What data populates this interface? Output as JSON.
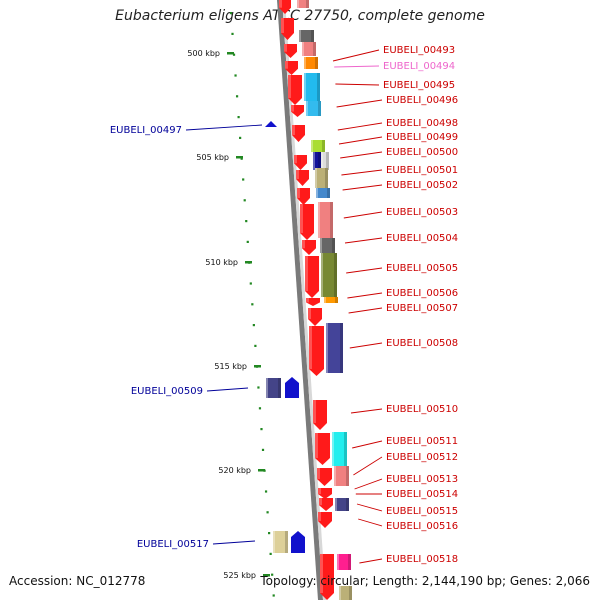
{
  "title": "Eubacterium eligens ATCC 27750, complete genome",
  "footer": {
    "accession": "Accession: NC_012778",
    "stats": "Topology: circular; Length: 2,144,190 bp; Genes: 2,066"
  },
  "colors": {
    "backbone": "#8a8a8a",
    "fwd_gene": "#ff1a1a",
    "label_red": "#cc0000",
    "label_blue": "#000099",
    "label_pink": "#ee66cc",
    "axis_dot": "#228822"
  },
  "ruler": {
    "unit": "kbp",
    "ticks": [
      {
        "label": "500 kbp"
      },
      {
        "label": "505 kbp"
      },
      {
        "label": "510 kbp"
      },
      {
        "label": "515 kbp"
      },
      {
        "label": "520 kbp"
      },
      {
        "label": "525 kbp"
      }
    ]
  },
  "genes": {
    "right_labels": [
      {
        "label": "EUBELI_00493",
        "color": "#cc0000"
      },
      {
        "label": "EUBELI_00494",
        "color": "#ee66cc"
      },
      {
        "label": "EUBELI_00495",
        "color": "#cc0000"
      },
      {
        "label": "EUBELI_00496",
        "color": "#cc0000"
      },
      {
        "label": "EUBELI_00498",
        "color": "#cc0000"
      },
      {
        "label": "EUBELI_00499",
        "color": "#cc0000"
      },
      {
        "label": "EUBELI_00500",
        "color": "#cc0000"
      },
      {
        "label": "EUBELI_00501",
        "color": "#cc0000"
      },
      {
        "label": "EUBELI_00502",
        "color": "#cc0000"
      },
      {
        "label": "EUBELI_00503",
        "color": "#cc0000"
      },
      {
        "label": "EUBELI_00504",
        "color": "#cc0000"
      },
      {
        "label": "EUBELI_00505",
        "color": "#cc0000"
      },
      {
        "label": "EUBELI_00506",
        "color": "#cc0000"
      },
      {
        "label": "EUBELI_00507",
        "color": "#cc0000"
      },
      {
        "label": "EUBELI_00508",
        "color": "#cc0000"
      },
      {
        "label": "EUBELI_00510",
        "color": "#cc0000"
      },
      {
        "label": "EUBELI_00511",
        "color": "#cc0000"
      },
      {
        "label": "EUBELI_00512",
        "color": "#cc0000"
      },
      {
        "label": "EUBELI_00513",
        "color": "#cc0000"
      },
      {
        "label": "EUBELI_00514",
        "color": "#cc0000"
      },
      {
        "label": "EUBELI_00515",
        "color": "#cc0000"
      },
      {
        "label": "EUBELI_00516",
        "color": "#cc0000"
      },
      {
        "label": "EUBELI_00518",
        "color": "#cc0000"
      }
    ],
    "left_labels": [
      {
        "label": "EUBELI_00497",
        "color": "#000099"
      },
      {
        "label": "EUBELI_00509",
        "color": "#000099"
      },
      {
        "label": "EUBELI_00517",
        "color": "#000099"
      }
    ]
  }
}
